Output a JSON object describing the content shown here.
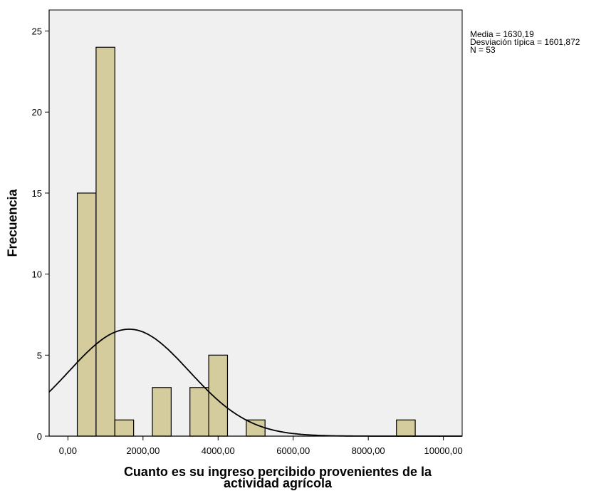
{
  "chart_data": {
    "type": "bar",
    "subtype": "histogram",
    "xlabel_lines": [
      "Cuanto es su ingreso percibido  provenientes de la",
      "actividad agrícola"
    ],
    "ylabel": "Frecuencia",
    "x_ticks": [
      0,
      2000,
      4000,
      6000,
      8000,
      10000
    ],
    "x_tick_labels": [
      "0,00",
      "2000,00",
      "4000,00",
      "6000,00",
      "8000,00",
      "10000,00"
    ],
    "y_ticks": [
      0,
      5,
      10,
      15,
      20,
      25
    ],
    "xlim": [
      -500,
      10500
    ],
    "ylim": [
      0,
      26.3
    ],
    "bins": [
      {
        "start": 250,
        "end": 750,
        "value": 15
      },
      {
        "start": 750,
        "end": 1250,
        "value": 24
      },
      {
        "start": 1250,
        "end": 1750,
        "value": 1
      },
      {
        "start": 2250,
        "end": 2750,
        "value": 3
      },
      {
        "start": 3250,
        "end": 3750,
        "value": 3
      },
      {
        "start": 3750,
        "end": 4250,
        "value": 5
      },
      {
        "start": 4750,
        "end": 5250,
        "value": 1
      },
      {
        "start": 8750,
        "end": 9250,
        "value": 1
      }
    ],
    "normal_curve": {
      "mean": 1630.19,
      "sd": 1601.872,
      "n": 53,
      "bin_width": 500
    },
    "stats_lines": [
      "Media = 1630,19",
      "Desviación típica = 1601,872",
      "N = 53"
    ],
    "colors": {
      "bar_fill": "#d4cc9c",
      "bar_stroke": "#000000",
      "plot_bg": "#f0f0f0",
      "curve": "#000000"
    },
    "grid": false,
    "legend": "none"
  }
}
